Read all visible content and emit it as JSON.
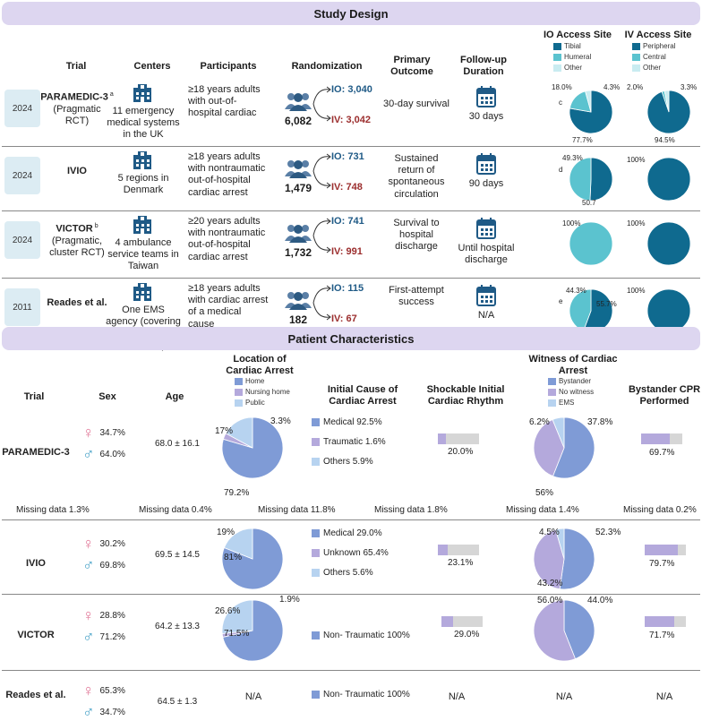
{
  "study_design": {
    "title": "Study Design",
    "headers": {
      "trial": "Trial",
      "centers": "Centers",
      "participants": "Participants",
      "randomization": "Randomization",
      "primary_outcome": "Primary Outcome",
      "follow_up": "Follow-up Duration",
      "io_site": "IO Access Site",
      "iv_site": "IV Access Site"
    },
    "io_legend": [
      "Tibial",
      "Humeral",
      "Other"
    ],
    "iv_legend": [
      "Peripheral",
      "Central",
      "Other"
    ],
    "colors": {
      "dark": "#0f6a8f",
      "mid": "#5bc3cf",
      "light": "#c9ecf1",
      "io": "#1f5a86",
      "iv": "#9b2d2d"
    },
    "rows": [
      {
        "year": "2024",
        "trial": "PARAMEDIC-3",
        "sup": "a",
        "subtitle": "(Pragmatic RCT)",
        "centers": "11 emergency medical systems in the UK",
        "participants": "≥18 years adults with out-of-hospital cardiac",
        "total": "6,082",
        "io": "IO: 3,040",
        "iv": "IV: 3,042",
        "outcome": "30-day survival",
        "follow_up": "30 days",
        "io_pie_label": "c",
        "io_pie": [
          77.7,
          18.0,
          4.3
        ],
        "io_pie_texts": [
          "77.7%",
          "18.0%",
          "4.3%"
        ],
        "iv_pie": [
          94.5,
          2.0,
          3.3
        ],
        "iv_pie_texts": [
          "94.5%",
          "2.0%",
          "3.3%"
        ]
      },
      {
        "year": "2024",
        "trial": "IVIO",
        "sup": "",
        "subtitle": "",
        "centers": "5 regions in Denmark",
        "participants": "≥18 years adults with nontraumatic out-of-hospital cardiac arrest",
        "total": "1,479",
        "io": "IO: 731",
        "iv": "IV: 748",
        "outcome": "Sustained return of spontaneous circulation",
        "follow_up": "90 days",
        "io_pie_label": "d",
        "io_pie": [
          50.7,
          49.3,
          0
        ],
        "io_pie_texts": [
          "50.7",
          "49.3%"
        ],
        "iv_pie": [
          100,
          0,
          0
        ],
        "iv_pie_texts": [
          "100%"
        ]
      },
      {
        "year": "2024",
        "trial": "VICTOR",
        "sup": "b",
        "subtitle": "(Pragmatic, cluster RCT)",
        "centers": "4 ambulance service teams in Taiwan",
        "participants": "≥20 years adults with nontraumatic out-of-hospital cardiac arrest",
        "total": "1,732",
        "io": "IO: 741",
        "iv": "IV: 991",
        "outcome": "Survival to hospital discharge",
        "follow_up": "Until hospital discharge",
        "io_pie_label": "",
        "io_pie": [
          0,
          100,
          0
        ],
        "io_pie_texts": [
          "100%"
        ],
        "iv_pie": [
          100,
          0,
          0
        ],
        "iv_pie_texts": [
          "100%"
        ]
      },
      {
        "year": "2011",
        "trial": "Reades et al.",
        "sup": "",
        "subtitle": "",
        "centers": "One EMS agency (covering 7 area hospitals in the US)",
        "participants": "≥18 years adults with cardiac arrest of a medical cause",
        "total": "182",
        "io": "IO: 115",
        "iv": "IV: 67",
        "outcome": "First-attempt success",
        "follow_up": "N/A",
        "io_pie_label": "e",
        "io_pie": [
          55.7,
          44.3,
          0
        ],
        "io_pie_texts": [
          "55.7%",
          "44.3%"
        ],
        "iv_pie": [
          100,
          0,
          0
        ],
        "iv_pie_texts": [
          "100%"
        ]
      }
    ]
  },
  "patient_characteristics": {
    "title": "Patient Characteristics",
    "headers": {
      "trial": "Trial",
      "sex": "Sex",
      "age": "Age",
      "location": "Location of Cardiac Arrest",
      "cause": "Initial Cause of Cardiac Arrest",
      "shockable": "Shockable Initial Cardiac Rhythm",
      "witness": "Witness of Cardiac Arrest",
      "bystander": "Bystander CPR Performed"
    },
    "location_legend": [
      "Home",
      "Nursing home",
      "Public"
    ],
    "witness_legend": [
      "Bystander",
      "No witness",
      "EMS"
    ],
    "colors": {
      "blue": "#7f9bd6",
      "lav": "#b4a9dc",
      "sky": "#b7d3f0",
      "grey": "#d6d6d6",
      "female": "#e27a9a",
      "male": "#4aa3c8"
    },
    "rows": [
      {
        "trial": "PARAMEDIC-3",
        "female": "34.7%",
        "male": "64.0%",
        "age": "68.0 ± 16.1",
        "location_pie": [
          79.2,
          3.3,
          17
        ],
        "location_texts": [
          "79.2%",
          "3.3%",
          "17%"
        ],
        "causes": [
          {
            "label": "Medical  92.5%",
            "color": "#7f9bd6"
          },
          {
            "label": "Traumatic 1.6%",
            "color": "#b4a9dc"
          },
          {
            "label": "Others 5.9%",
            "color": "#b7d3f0"
          }
        ],
        "shockable": 20.0,
        "shockable_text": "20.0%",
        "witness_pie": [
          56,
          37.8,
          6.2
        ],
        "witness_texts": [
          "56%",
          "37.8%",
          "6.2%"
        ],
        "bystander": 69.7,
        "bystander_text": "69.7%",
        "missing": [
          "Missing data 1.3%",
          "Missing data 0.4%",
          "Missing data 11.8%",
          "Missing data 1.8%",
          "Missing data 1.4%",
          "Missing data 0.2%"
        ]
      },
      {
        "trial": "IVIO",
        "female": "30.2%",
        "male": "69.8%",
        "age": "69.5 ± 14.5",
        "location_pie": [
          81,
          0,
          19
        ],
        "location_texts": [
          "81%",
          "19%"
        ],
        "causes": [
          {
            "label": "Medical  29.0%",
            "color": "#7f9bd6"
          },
          {
            "label": "Unknown 65.4%",
            "color": "#b4a9dc"
          },
          {
            "label": "Others 5.6%",
            "color": "#b7d3f0"
          }
        ],
        "shockable": 23.1,
        "shockable_text": "23.1%",
        "witness_pie": [
          52.3,
          43.2,
          4.5
        ],
        "witness_texts": [
          "52.3%",
          "43.2%",
          "4.5%"
        ],
        "bystander": 79.7,
        "bystander_text": "79.7%"
      },
      {
        "trial": "VICTOR",
        "female": "28.8%",
        "male": "71.2%",
        "age": "64.2 ± 13.3",
        "location_pie": [
          71.5,
          1.9,
          26.6
        ],
        "location_texts": [
          "71.5%",
          "1.9%",
          "26.6%"
        ],
        "causes": [
          {
            "label": "Non- Traumatic 100%",
            "color": "#7f9bd6"
          }
        ],
        "shockable": 29.0,
        "shockable_text": "29.0%",
        "witness_pie": [
          44.0,
          56.0,
          0
        ],
        "witness_texts": [
          "44.0%",
          "56.0%"
        ],
        "bystander": 71.7,
        "bystander_text": "71.7%"
      },
      {
        "trial": "Reades et al.",
        "female": "65.3%",
        "male": "34.7%",
        "age": "64.5 ± 1.3",
        "location_na": "N/A",
        "causes": [
          {
            "label": "Non- Traumatic 100%",
            "color": "#7f9bd6"
          }
        ],
        "shockable_na": "N/A",
        "witness_na": "N/A",
        "bystander_na": "N/A"
      }
    ]
  }
}
